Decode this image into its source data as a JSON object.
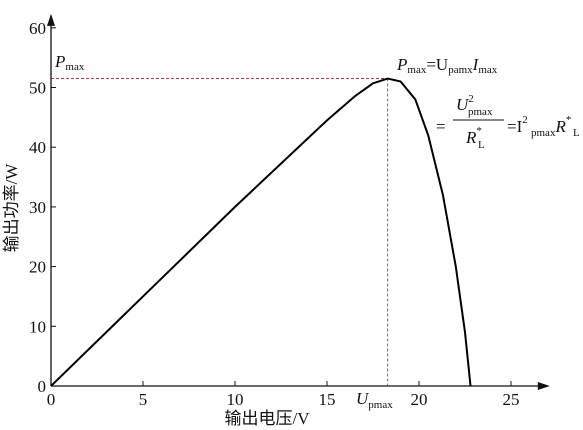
{
  "chart_data": {
    "type": "line",
    "x_label": "输出电压/V",
    "y_label": "输出功率/W",
    "x": [
      0,
      5,
      10,
      15,
      16.5,
      17.5,
      18.3,
      19,
      19.8,
      20.5,
      21.3,
      22,
      22.5,
      22.8
    ],
    "series": [
      {
        "color": "#000000",
        "values": [
          0,
          15,
          30,
          44.5,
          48.5,
          50.7,
          51.5,
          51,
          48,
          42,
          32,
          20,
          9,
          0
        ]
      }
    ],
    "xlim": [
      0,
      27
    ],
    "ylim": [
      0,
      62
    ],
    "xticks": [
      0,
      5,
      10,
      15,
      20,
      25
    ],
    "yticks": [
      0,
      10,
      20,
      30,
      40,
      50,
      60
    ],
    "annotations": {
      "pmax_label": [
        "P",
        "max"
      ],
      "formula_line1": [
        "P",
        "max",
        "=U",
        "pamx",
        "I",
        "max"
      ],
      "formula_line2": [
        "=",
        "U",
        "2",
        "pmax",
        "R",
        "*",
        "L",
        "=I",
        "2",
        "pmax",
        "R",
        "*",
        "L"
      ],
      "umax_label": [
        "U",
        "pmax"
      ]
    }
  }
}
